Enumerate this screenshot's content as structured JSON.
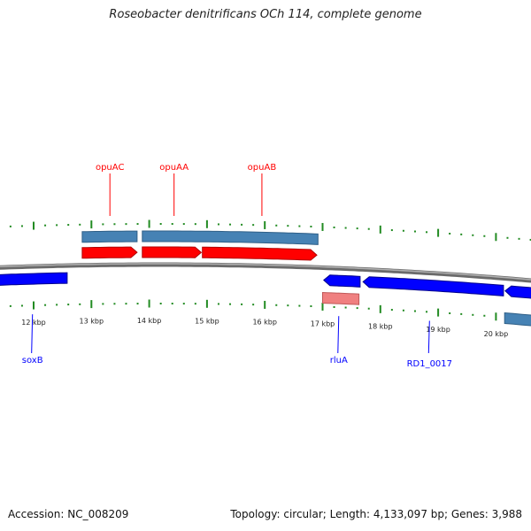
{
  "title": "Roseobacter denitrificans OCh 114, complete genome",
  "accession": "Accession: NC_008209",
  "topology": "Topology: circular; Length: 4,133,097 bp; Genes: 3,988",
  "colors": {
    "forward_cds": "#ff0000",
    "reverse_cds": "#0000ff",
    "gene": "#4682b4",
    "rna": "#f08080",
    "tick": "#228b22",
    "backbone": "#808080"
  },
  "ruler": {
    "unit": "kbp",
    "labels": [
      "12 kbp",
      "13 kbp",
      "14 kbp",
      "15 kbp",
      "16 kbp",
      "17 kbp",
      "18 kbp",
      "19 kbp",
      "20 kbp"
    ],
    "values": [
      12,
      13,
      14,
      15,
      16,
      17,
      18,
      19,
      20
    ]
  },
  "features": [
    {
      "track": "gene_fwd",
      "start": 12.84,
      "end": 13.79,
      "strand": "none"
    },
    {
      "track": "gene_fwd",
      "start": 13.88,
      "end": 16.92,
      "strand": "none"
    },
    {
      "track": "cds_fwd",
      "start": 12.84,
      "end": 13.79,
      "strand": "+"
    },
    {
      "track": "cds_fwd",
      "start": 13.88,
      "end": 14.9,
      "strand": "+"
    },
    {
      "track": "cds_fwd",
      "start": 14.92,
      "end": 16.9,
      "strand": "+"
    },
    {
      "track": "cds_rev",
      "start": 11.0,
      "end": 12.58,
      "strand": "none"
    },
    {
      "track": "cds_rev",
      "start": 17.02,
      "end": 17.65,
      "strand": "-"
    },
    {
      "track": "cds_rev",
      "start": 17.7,
      "end": 20.13,
      "strand": "-"
    },
    {
      "track": "cds_rev",
      "start": 20.16,
      "end": 21.0,
      "strand": "-"
    },
    {
      "track": "rna_rev",
      "start": 17.0,
      "end": 17.63,
      "strand": "none"
    },
    {
      "track": "gene_rev",
      "start": 20.15,
      "end": 21.0,
      "strand": "none"
    }
  ],
  "labels": [
    {
      "text": "opuAC",
      "pos": 13.32,
      "side": "top"
    },
    {
      "text": "opuAA",
      "pos": 14.43,
      "side": "top"
    },
    {
      "text": "opuAB",
      "pos": 15.95,
      "side": "top"
    },
    {
      "text": "soxB",
      "pos": 11.98,
      "side": "bottom"
    },
    {
      "text": "rluA",
      "pos": 17.28,
      "side": "bottom"
    },
    {
      "text": "RD1_0017",
      "pos": 18.85,
      "side": "bottom"
    }
  ]
}
